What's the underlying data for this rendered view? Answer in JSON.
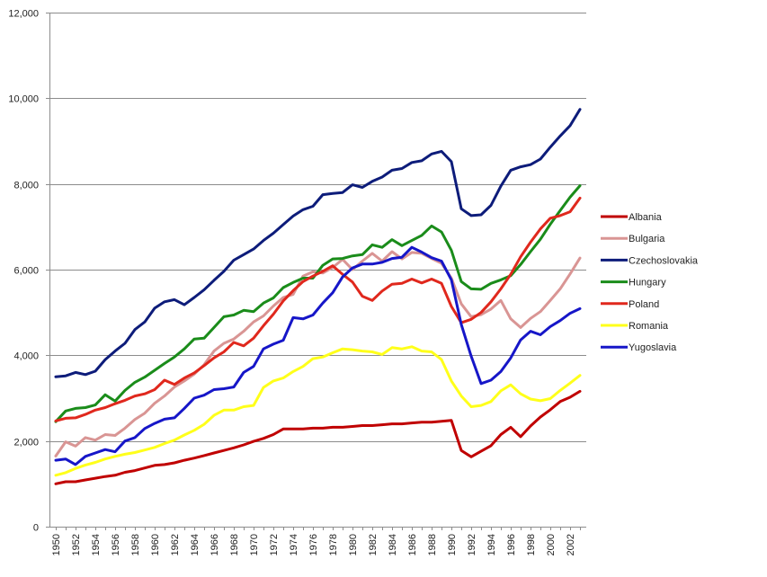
{
  "chart_data": {
    "type": "line",
    "title": "",
    "xlabel": "",
    "ylabel": "",
    "ylim": [
      0,
      12000
    ],
    "y_ticks": [
      0,
      2000,
      4000,
      6000,
      8000,
      10000,
      12000
    ],
    "y_tick_labels": [
      "0",
      "2,000",
      "4,000",
      "6,000",
      "8,000",
      "10,000",
      "12,000"
    ],
    "x_tick_labels": [
      "1950",
      "1952",
      "1954",
      "1956",
      "1958",
      "1960",
      "1962",
      "1964",
      "1966",
      "1968",
      "1970",
      "1972",
      "1974",
      "1976",
      "1978",
      "1980",
      "1982",
      "1984",
      "1986",
      "1988",
      "1990",
      "1992",
      "1994",
      "1996",
      "1998",
      "2000",
      "2002"
    ],
    "grid": "horizontal",
    "legend_position": "right",
    "x": [
      1950,
      1951,
      1952,
      1953,
      1954,
      1955,
      1956,
      1957,
      1958,
      1959,
      1960,
      1961,
      1962,
      1963,
      1964,
      1965,
      1966,
      1967,
      1968,
      1969,
      1970,
      1971,
      1972,
      1973,
      1974,
      1975,
      1976,
      1977,
      1978,
      1979,
      1980,
      1981,
      1982,
      1983,
      1984,
      1985,
      1986,
      1987,
      1988,
      1989,
      1990,
      1991,
      1992,
      1993,
      1994,
      1995,
      1996,
      1997,
      1998,
      1999,
      2000,
      2001,
      2002,
      2003
    ],
    "series": [
      {
        "name": "Albania",
        "color": "#c00000",
        "values": [
          1000,
          1050,
          1050,
          1090,
          1130,
          1170,
          1200,
          1270,
          1310,
          1370,
          1430,
          1450,
          1490,
          1550,
          1600,
          1660,
          1720,
          1780,
          1840,
          1910,
          1990,
          2060,
          2150,
          2280,
          2280,
          2280,
          2300,
          2300,
          2320,
          2320,
          2340,
          2360,
          2360,
          2380,
          2400,
          2400,
          2420,
          2440,
          2440,
          2460,
          2480,
          1780,
          1630,
          1760,
          1890,
          2150,
          2320,
          2100,
          2350,
          2560,
          2730,
          2920,
          3020,
          3160
        ]
      },
      {
        "name": "Bulgaria",
        "color": "#d99594",
        "values": [
          1650,
          1980,
          1880,
          2080,
          2020,
          2150,
          2130,
          2300,
          2500,
          2650,
          2880,
          3050,
          3260,
          3400,
          3560,
          3780,
          4100,
          4280,
          4380,
          4560,
          4780,
          4920,
          5150,
          5350,
          5420,
          5850,
          5950,
          5920,
          6050,
          6240,
          6000,
          6200,
          6380,
          6200,
          6420,
          6250,
          6400,
          6380,
          6260,
          6150,
          5800,
          5200,
          4900,
          4950,
          5080,
          5280,
          4850,
          4650,
          4860,
          5020,
          5280,
          5550,
          5900,
          6270
        ]
      },
      {
        "name": "Czechoslovakia",
        "color": "#0d1c7a",
        "values": [
          3500,
          3520,
          3600,
          3550,
          3630,
          3900,
          4100,
          4280,
          4600,
          4780,
          5100,
          5250,
          5300,
          5180,
          5350,
          5530,
          5750,
          5960,
          6220,
          6350,
          6480,
          6680,
          6850,
          7050,
          7250,
          7400,
          7480,
          7750,
          7780,
          7800,
          7980,
          7920,
          8060,
          8160,
          8320,
          8360,
          8500,
          8540,
          8700,
          8760,
          8520,
          7420,
          7260,
          7280,
          7500,
          7950,
          8320,
          8400,
          8450,
          8580,
          8860,
          9120,
          9360,
          9740
        ]
      },
      {
        "name": "Hungary",
        "color": "#1a8c1a",
        "values": [
          2450,
          2700,
          2760,
          2780,
          2840,
          3080,
          2930,
          3180,
          3370,
          3490,
          3650,
          3810,
          3960,
          4150,
          4380,
          4400,
          4650,
          4900,
          4940,
          5050,
          5020,
          5220,
          5340,
          5580,
          5700,
          5800,
          5800,
          6100,
          6250,
          6260,
          6320,
          6350,
          6580,
          6520,
          6700,
          6560,
          6680,
          6800,
          7020,
          6880,
          6450,
          5720,
          5550,
          5540,
          5680,
          5760,
          5860,
          6120,
          6420,
          6710,
          7060,
          7380,
          7690,
          7960
        ]
      },
      {
        "name": "Poland",
        "color": "#e0281d",
        "values": [
          2470,
          2530,
          2540,
          2620,
          2720,
          2780,
          2870,
          2950,
          3050,
          3100,
          3200,
          3420,
          3320,
          3470,
          3590,
          3760,
          3940,
          4080,
          4300,
          4220,
          4400,
          4690,
          4960,
          5270,
          5510,
          5720,
          5850,
          5960,
          6090,
          5890,
          5710,
          5380,
          5280,
          5500,
          5660,
          5680,
          5780,
          5690,
          5780,
          5680,
          5140,
          4760,
          4840,
          5000,
          5250,
          5550,
          5890,
          6300,
          6640,
          6950,
          7200,
          7260,
          7350,
          7670
        ]
      },
      {
        "name": "Romania",
        "color": "#ffff1a",
        "values": [
          1200,
          1260,
          1360,
          1440,
          1500,
          1580,
          1640,
          1690,
          1730,
          1790,
          1850,
          1940,
          2020,
          2140,
          2250,
          2390,
          2600,
          2720,
          2720,
          2800,
          2830,
          3250,
          3400,
          3470,
          3620,
          3740,
          3920,
          3960,
          4060,
          4150,
          4130,
          4100,
          4080,
          4020,
          4180,
          4150,
          4200,
          4100,
          4080,
          3900,
          3400,
          3050,
          2800,
          2830,
          2920,
          3170,
          3310,
          3100,
          2980,
          2940,
          2990,
          3180,
          3350,
          3530
        ]
      },
      {
        "name": "Yugoslavia",
        "color": "#1616c8",
        "values": [
          1550,
          1580,
          1450,
          1640,
          1720,
          1800,
          1750,
          2000,
          2080,
          2290,
          2410,
          2510,
          2540,
          2760,
          3000,
          3070,
          3200,
          3220,
          3260,
          3600,
          3740,
          4150,
          4260,
          4350,
          4880,
          4850,
          4940,
          5220,
          5460,
          5830,
          6040,
          6130,
          6130,
          6170,
          6260,
          6290,
          6520,
          6410,
          6280,
          6200,
          5760,
          4720,
          3980,
          3340,
          3420,
          3620,
          3940,
          4360,
          4560,
          4480,
          4670,
          4810,
          4980,
          5090
        ]
      }
    ]
  }
}
